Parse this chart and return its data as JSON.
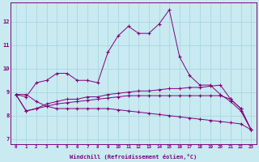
{
  "xlabel": "Windchill (Refroidissement éolien,°C)",
  "x": [
    0,
    1,
    2,
    3,
    4,
    5,
    6,
    7,
    8,
    9,
    10,
    11,
    12,
    13,
    14,
    15,
    16,
    17,
    18,
    19,
    20,
    21,
    22,
    23
  ],
  "line1": [
    8.9,
    8.8,
    9.4,
    9.5,
    9.8,
    9.8,
    9.5,
    9.5,
    9.4,
    10.7,
    11.4,
    11.8,
    11.5,
    11.5,
    11.9,
    12.5,
    10.5,
    9.7,
    9.3,
    9.3,
    8.9,
    8.6,
    8.2,
    7.4
  ],
  "line2": [
    8.9,
    8.2,
    8.3,
    8.5,
    8.6,
    8.7,
    8.7,
    8.8,
    8.8,
    8.9,
    8.95,
    9.0,
    9.05,
    9.05,
    9.1,
    9.15,
    9.15,
    9.2,
    9.2,
    9.25,
    9.3,
    8.7,
    8.3,
    7.4
  ],
  "line3": [
    8.9,
    8.2,
    8.3,
    8.4,
    8.5,
    8.55,
    8.6,
    8.65,
    8.7,
    8.75,
    8.8,
    8.85,
    8.85,
    8.85,
    8.85,
    8.85,
    8.85,
    8.85,
    8.85,
    8.85,
    8.85,
    8.7,
    8.3,
    7.4
  ],
  "line4": [
    8.9,
    8.9,
    8.6,
    8.4,
    8.3,
    8.3,
    8.3,
    8.3,
    8.3,
    8.3,
    8.25,
    8.2,
    8.15,
    8.1,
    8.05,
    8.0,
    7.95,
    7.9,
    7.85,
    7.8,
    7.75,
    7.7,
    7.65,
    7.4
  ],
  "line_color": "#800080",
  "bg_color": "#c8eaf0",
  "grid_color": "#a8d8e0",
  "ylim": [
    6.8,
    12.8
  ],
  "yticks": [
    7,
    8,
    9,
    10,
    11,
    12
  ],
  "xlim": [
    -0.5,
    23.5
  ]
}
